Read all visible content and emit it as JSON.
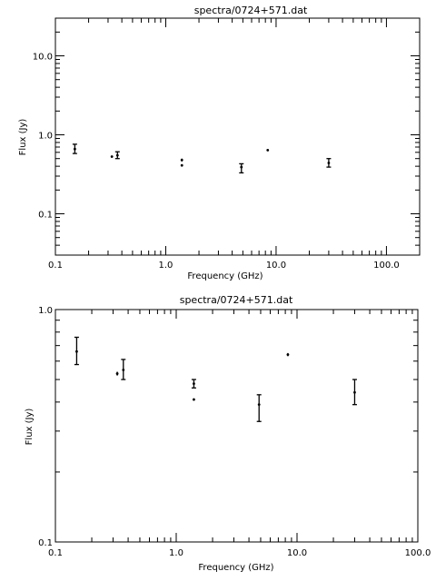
{
  "chart_data": [
    {
      "type": "scatter",
      "title": "spectra/0724+571.dat",
      "xlabel": "Frequency (GHz)",
      "ylabel": "Flux (Jy)",
      "xscale": "log",
      "yscale": "log",
      "xlim": [
        0.1,
        200
      ],
      "ylim": [
        0.03,
        30
      ],
      "xticks": [
        {
          "value": 0.1,
          "label": "0.1"
        },
        {
          "value": 1,
          "label": "1.0"
        },
        {
          "value": 10,
          "label": "10.0"
        },
        {
          "value": 100,
          "label": "100.0"
        }
      ],
      "yticks": [
        {
          "value": 0.1,
          "label": "0.1"
        },
        {
          "value": 1,
          "label": "1.0"
        },
        {
          "value": 10,
          "label": "10.0"
        }
      ],
      "points": [
        {
          "x": 0.15,
          "y": 0.66,
          "ylo": 0.58,
          "yhi": 0.76
        },
        {
          "x": 0.325,
          "y": 0.53,
          "ylo": 0.52,
          "yhi": 0.54
        },
        {
          "x": 0.365,
          "y": 0.55,
          "ylo": 0.5,
          "yhi": 0.61
        },
        {
          "x": 1.4,
          "y": 0.48,
          "ylo": 0.46,
          "yhi": 0.5
        },
        {
          "x": 1.4,
          "y": 0.41,
          "ylo": 0.405,
          "yhi": 0.415
        },
        {
          "x": 4.85,
          "y": 0.39,
          "ylo": 0.33,
          "yhi": 0.43
        },
        {
          "x": 8.4,
          "y": 0.64,
          "ylo": 0.63,
          "yhi": 0.65
        },
        {
          "x": 30,
          "y": 0.44,
          "ylo": 0.39,
          "yhi": 0.5
        }
      ],
      "grid": false
    },
    {
      "type": "scatter",
      "title": "spectra/0724+571.dat",
      "xlabel": "Frequency (GHz)",
      "ylabel": "Flux (Jy)",
      "xscale": "log",
      "yscale": "log",
      "xlim": [
        0.1,
        100
      ],
      "ylim": [
        0.1,
        1.0
      ],
      "xticks": [
        {
          "value": 0.1,
          "label": "0.1"
        },
        {
          "value": 1,
          "label": "1.0"
        },
        {
          "value": 10,
          "label": "10.0"
        },
        {
          "value": 100,
          "label": "100.0"
        }
      ],
      "yticks": [
        {
          "value": 0.1,
          "label": "0.1"
        },
        {
          "value": 1,
          "label": "1.0"
        }
      ],
      "points": [
        {
          "x": 0.15,
          "y": 0.66,
          "ylo": 0.58,
          "yhi": 0.76
        },
        {
          "x": 0.325,
          "y": 0.53,
          "ylo": 0.52,
          "yhi": 0.54
        },
        {
          "x": 0.365,
          "y": 0.55,
          "ylo": 0.5,
          "yhi": 0.61
        },
        {
          "x": 1.4,
          "y": 0.48,
          "ylo": 0.46,
          "yhi": 0.5
        },
        {
          "x": 1.4,
          "y": 0.41,
          "ylo": 0.405,
          "yhi": 0.415
        },
        {
          "x": 4.85,
          "y": 0.39,
          "ylo": 0.33,
          "yhi": 0.43
        },
        {
          "x": 8.4,
          "y": 0.64,
          "ylo": 0.63,
          "yhi": 0.65
        },
        {
          "x": 30,
          "y": 0.44,
          "ylo": 0.39,
          "yhi": 0.5
        }
      ],
      "grid": false
    }
  ]
}
